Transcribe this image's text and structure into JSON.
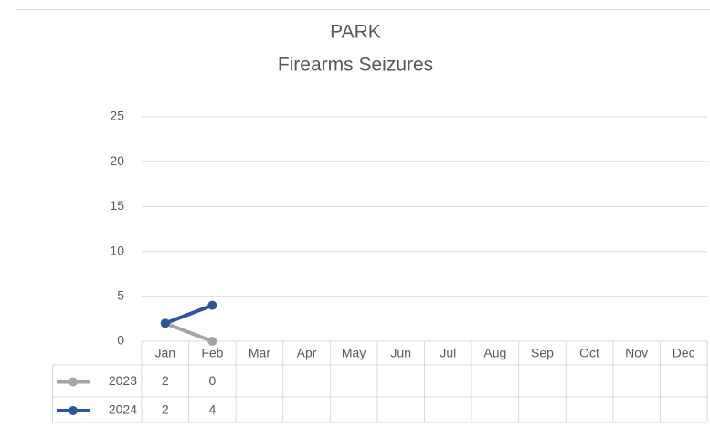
{
  "chart_data": {
    "type": "line",
    "title": "PARK",
    "subtitle": "Firearms Seizures",
    "categories": [
      "Jan",
      "Feb",
      "Mar",
      "Apr",
      "May",
      "Jun",
      "Jul",
      "Aug",
      "Sep",
      "Oct",
      "Nov",
      "Dec"
    ],
    "series": [
      {
        "name": "2023",
        "color": "#a5a5a5",
        "values": [
          2,
          0,
          null,
          null,
          null,
          null,
          null,
          null,
          null,
          null,
          null,
          null
        ]
      },
      {
        "name": "2024",
        "color": "#2f5597",
        "values": [
          2,
          4,
          null,
          null,
          null,
          null,
          null,
          null,
          null,
          null,
          null,
          null
        ]
      }
    ],
    "ylim": [
      0,
      25
    ],
    "yticks": [
      0,
      5,
      10,
      15,
      20,
      25
    ],
    "grid": true,
    "data_table": true
  }
}
